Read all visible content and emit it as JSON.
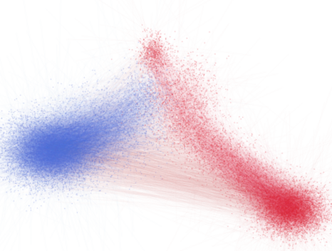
{
  "image": {
    "description_kind": "network-visualization",
    "background_color": "#ffffff",
    "clusters": [
      {
        "color": "#5b73d6"
      },
      {
        "color": "#dc2a3a"
      }
    ]
  }
}
